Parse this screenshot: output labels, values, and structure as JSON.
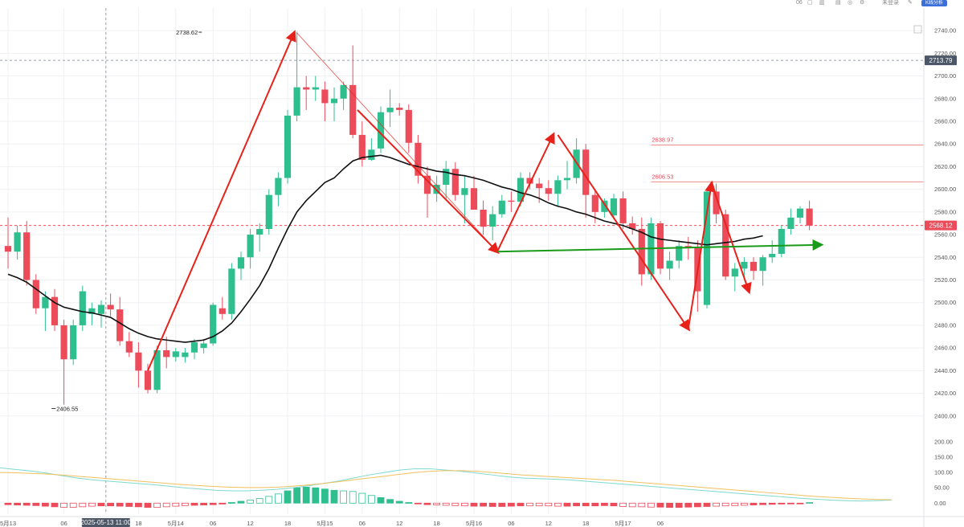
{
  "toolbar": {
    "items": [
      "06",
      "▢",
      "▥",
      "▤",
      "◎",
      "⚙",
      "未登录",
      "✎"
    ],
    "chip_label": "K线分析"
  },
  "chart_data": {
    "type": "candlestick",
    "title": "",
    "subtitle": "",
    "x_tick_labels": [
      "5月13",
      "06",
      "2025-05-13 11:00",
      "18",
      "5月14",
      "06",
      "12",
      "18",
      "5月15",
      "06",
      "12",
      "18",
      "5月16",
      "06",
      "12",
      "18",
      "5月17",
      "06"
    ],
    "x_tick_index": [
      0,
      6,
      10.5,
      14,
      18,
      22,
      26,
      30,
      34,
      38,
      42,
      46,
      50,
      54,
      58,
      62,
      66,
      70
    ],
    "y_tick_labels": [
      "2740.00",
      "2720.00",
      "2700.00",
      "2680.00",
      "2660.00",
      "2640.00",
      "2620.00",
      "2600.00",
      "2580.00",
      "2560.00",
      "2540.00",
      "2520.00",
      "2500.00",
      "2480.00",
      "2460.00",
      "2440.00",
      "2420.00",
      "2400.00"
    ],
    "ylim": [
      2380,
      2750
    ],
    "current_price": "2568.12",
    "crosshair_price": "2713.79",
    "crosshair_time": "2025-05-13 11:00",
    "crosshair_index": 10.5,
    "annotations": {
      "high_label": "2738.62",
      "high_value": 2738.62,
      "high_index": 20.8,
      "low_label": "2406.55",
      "low_value": 2406.55,
      "low_index": 4.5,
      "level_1_label": "2638.97",
      "level_1_value": 2638.97,
      "level_2_label": "2606.53",
      "level_2_value": 2606.53
    },
    "candles": [
      [
        2550,
        2575,
        2530,
        2545
      ],
      [
        2545,
        2568,
        2538,
        2562
      ],
      [
        2562,
        2572,
        2515,
        2520
      ],
      [
        2520,
        2525,
        2490,
        2495
      ],
      [
        2495,
        2510,
        2475,
        2505
      ],
      [
        2505,
        2512,
        2475,
        2480
      ],
      [
        2480,
        2485,
        2410,
        2450
      ],
      [
        2450,
        2485,
        2445,
        2480
      ],
      [
        2480,
        2515,
        2475,
        2510
      ],
      [
        2490,
        2500,
        2480,
        2495
      ],
      [
        2490,
        2502,
        2478,
        2498
      ],
      [
        2498,
        2508,
        2488,
        2494
      ],
      [
        2494,
        2505,
        2462,
        2466
      ],
      [
        2466,
        2474,
        2452,
        2456
      ],
      [
        2456,
        2465,
        2425,
        2440
      ],
      [
        2440,
        2446,
        2420,
        2423
      ],
      [
        2423,
        2462,
        2420,
        2458
      ],
      [
        2458,
        2470,
        2442,
        2452
      ],
      [
        2452,
        2460,
        2448,
        2457
      ],
      [
        2452,
        2460,
        2447,
        2456
      ],
      [
        2456,
        2468,
        2450,
        2465
      ],
      [
        2460,
        2468,
        2455,
        2464
      ],
      [
        2464,
        2500,
        2462,
        2498
      ],
      [
        2495,
        2505,
        2485,
        2490
      ],
      [
        2490,
        2535,
        2485,
        2530
      ],
      [
        2530,
        2545,
        2520,
        2540
      ],
      [
        2540,
        2565,
        2530,
        2560
      ],
      [
        2560,
        2570,
        2545,
        2565
      ],
      [
        2565,
        2600,
        2560,
        2595
      ],
      [
        2595,
        2615,
        2585,
        2610
      ],
      [
        2610,
        2670,
        2605,
        2665
      ],
      [
        2665,
        2739,
        2660,
        2690
      ],
      [
        2690,
        2700,
        2670,
        2688
      ],
      [
        2688,
        2700,
        2678,
        2690
      ],
      [
        2688,
        2695,
        2660,
        2676
      ],
      [
        2676,
        2690,
        2660,
        2680
      ],
      [
        2680,
        2695,
        2670,
        2692
      ],
      [
        2692,
        2727,
        2645,
        2648
      ],
      [
        2648,
        2660,
        2620,
        2626
      ],
      [
        2626,
        2645,
        2625,
        2635
      ],
      [
        2636,
        2673,
        2632,
        2668
      ],
      [
        2668,
        2688,
        2655,
        2672
      ],
      [
        2672,
        2676,
        2665,
        2670
      ],
      [
        2670,
        2675,
        2632,
        2641
      ],
      [
        2641,
        2648,
        2605,
        2612
      ],
      [
        2612,
        2620,
        2575,
        2596
      ],
      [
        2596,
        2612,
        2589,
        2604
      ],
      [
        2604,
        2625,
        2590,
        2618
      ],
      [
        2618,
        2624,
        2590,
        2595
      ],
      [
        2595,
        2612,
        2570,
        2601
      ],
      [
        2601,
        2612,
        2582,
        2582
      ],
      [
        2582,
        2590,
        2560,
        2567
      ],
      [
        2567,
        2585,
        2555,
        2578
      ],
      [
        2578,
        2595,
        2575,
        2590
      ],
      [
        2590,
        2598,
        2580,
        2589
      ],
      [
        2589,
        2615,
        2585,
        2610
      ],
      [
        2610,
        2615,
        2600,
        2605
      ],
      [
        2605,
        2610,
        2588,
        2601
      ],
      [
        2601,
        2608,
        2590,
        2596
      ],
      [
        2596,
        2612,
        2585,
        2608
      ],
      [
        2608,
        2625,
        2600,
        2610
      ],
      [
        2610,
        2645,
        2605,
        2635
      ],
      [
        2635,
        2640,
        2575,
        2595
      ],
      [
        2595,
        2600,
        2570,
        2580
      ],
      [
        2580,
        2592,
        2575,
        2590
      ],
      [
        2577,
        2596,
        2574,
        2592
      ],
      [
        2592,
        2598,
        2565,
        2570
      ],
      [
        2570,
        2576,
        2560,
        2565
      ],
      [
        2565,
        2575,
        2515,
        2525
      ],
      [
        2525,
        2575,
        2520,
        2570
      ],
      [
        2570,
        2572,
        2525,
        2530
      ],
      [
        2530,
        2545,
        2520,
        2537
      ],
      [
        2537,
        2555,
        2530,
        2550
      ],
      [
        2550,
        2558,
        2538,
        2548
      ],
      [
        2548,
        2555,
        2492,
        2510
      ],
      [
        2498,
        2600,
        2495,
        2598
      ],
      [
        2598,
        2605,
        2570,
        2578
      ],
      [
        2578,
        2582,
        2520,
        2523
      ],
      [
        2523,
        2535,
        2510,
        2530
      ],
      [
        2530,
        2540,
        2520,
        2536
      ],
      [
        2536,
        2540,
        2520,
        2528
      ],
      [
        2528,
        2542,
        2515,
        2540
      ],
      [
        2540,
        2555,
        2535,
        2543
      ],
      [
        2543,
        2568,
        2540,
        2565
      ],
      [
        2565,
        2583,
        2560,
        2575
      ],
      [
        2575,
        2585,
        2570,
        2583
      ],
      [
        2583,
        2590,
        2564,
        2568
      ]
    ],
    "ma_line": {
      "color": "#111111",
      "values": [
        2525,
        2522,
        2518,
        2512,
        2506,
        2500,
        2496,
        2494,
        2492,
        2491,
        2489,
        2487,
        2482,
        2477,
        2473,
        2470,
        2468,
        2467,
        2466,
        2465,
        2466,
        2467,
        2470,
        2475,
        2482,
        2492,
        2503,
        2515,
        2530,
        2548,
        2565,
        2580,
        2590,
        2598,
        2606,
        2610,
        2618,
        2625,
        2628,
        2629,
        2630,
        2628,
        2625,
        2622,
        2620,
        2618,
        2616,
        2615,
        2613,
        2612,
        2610,
        2608,
        2605,
        2602,
        2600,
        2597,
        2595,
        2592,
        2588,
        2585,
        2583,
        2580,
        2578,
        2575,
        2572,
        2570,
        2568,
        2565,
        2562,
        2558,
        2556,
        2555,
        2554,
        2553,
        2552,
        2551,
        2552,
        2553,
        2554,
        2556,
        2557,
        2559
      ]
    },
    "volume_axis_labels": [
      "200.00",
      "150.00",
      "100.00",
      "50.00",
      "0.00"
    ],
    "macd": {
      "ylim": [
        -15,
        200
      ],
      "hist": [
        -5,
        -6,
        -7,
        -8,
        -10,
        -12,
        -14,
        -14,
        -12,
        -10,
        -9,
        -9,
        -10,
        -11,
        -12,
        -14,
        -14,
        -12,
        -10,
        -8,
        -7,
        -6,
        -5,
        -3,
        2,
        6,
        10,
        15,
        22,
        30,
        40,
        50,
        52,
        50,
        46,
        42,
        40,
        38,
        32,
        25,
        18,
        12,
        6,
        2,
        -2,
        -5,
        -6,
        -7,
        -8,
        -9,
        -10,
        -10,
        -11,
        -11,
        -10,
        -9,
        -9,
        -9,
        -9,
        -10,
        -10,
        -9,
        -9,
        -9,
        -8,
        -9,
        -11,
        -12,
        -12,
        -13,
        -13,
        -14,
        -14,
        -13,
        -12,
        -11,
        -10,
        -9,
        -8,
        -7,
        -6,
        -5,
        -4,
        -3,
        -2,
        -1,
        2
      ],
      "line_fast": {
        "color": "#7fd8d0",
        "values": [
          115,
          110,
          105,
          98,
          90,
          82,
          76,
          72,
          68,
          64,
          60,
          55,
          50,
          46,
          42,
          40,
          40,
          42,
          45,
          50,
          56,
          64,
          72,
          82,
          92,
          100,
          108,
          112,
          112,
          108,
          104,
          98,
          92,
          86,
          82,
          80,
          78,
          76,
          72,
          68,
          64,
          60,
          56,
          52,
          48,
          44,
          40,
          36,
          32,
          28,
          24,
          20,
          16,
          13,
          10,
          8,
          7,
          8,
          10
        ]
      },
      "line_slow": {
        "color": "#f0c060",
        "values": [
          100,
          99,
          97,
          95,
          92,
          88,
          84,
          80,
          76,
          72,
          68,
          64,
          60,
          57,
          54,
          52,
          51,
          51,
          52,
          55,
          59,
          64,
          70,
          76,
          82,
          88,
          94,
          100,
          104,
          106,
          106,
          104,
          100,
          96,
          92,
          89,
          86,
          83,
          80,
          77,
          74,
          70,
          66,
          62,
          58,
          54,
          50,
          46,
          42,
          38,
          34,
          30,
          26,
          22,
          19,
          16,
          14,
          12,
          11
        ]
      }
    },
    "colors": {
      "up": "#2fbf8f",
      "down": "#ec4b5a",
      "green_line": "#1a9a1a",
      "red_line": "#e8221a",
      "grid": "#eef0f3",
      "axis_tag": "#4b5666"
    }
  }
}
